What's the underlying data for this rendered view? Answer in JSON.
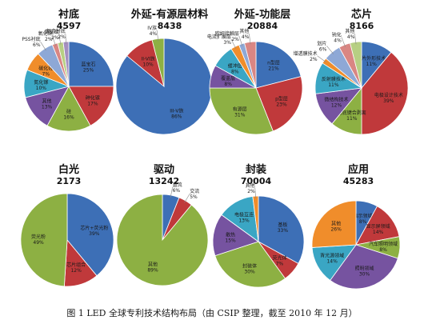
{
  "figure": {
    "caption": "图 1 LED 全球专利技术结构布局（由 CSIP 整理，截至 2010 年 12 月）"
  },
  "chart_data": [
    {
      "type": "pie",
      "title": "衬底",
      "total": "4597",
      "slices": [
        {
          "label": "蓝宝石",
          "value": 25,
          "color": "#3d6fb6"
        },
        {
          "label": "砷化镓",
          "value": 17,
          "color": "#c0393b"
        },
        {
          "label": "硅",
          "value": 16,
          "color": "#8db043"
        },
        {
          "label": "其他",
          "value": 13,
          "color": "#7653a0"
        },
        {
          "label": "氮化镓",
          "value": 10,
          "color": "#3aa6c4"
        },
        {
          "label": "碳化硅",
          "value": 7,
          "color": "#f08d2b"
        },
        {
          "label": "PSS衬底",
          "value": 6,
          "color": "#8ea8d6"
        },
        {
          "label": "氧化锌",
          "value": 2,
          "color": "#d98683"
        },
        {
          "label": "氮化铝",
          "value": 2,
          "color": "#b7cf83"
        },
        {
          "label": "复合衬底",
          "value": 2,
          "color": "#a48fc1"
        }
      ]
    },
    {
      "type": "pie",
      "title": "外延-有源层材料",
      "total": "8438",
      "slices": [
        {
          "label": "III-V族",
          "value": 86,
          "color": "#3d6fb6"
        },
        {
          "label": "II-VI族",
          "value": 10,
          "color": "#c0393b"
        },
        {
          "label": "IV族",
          "value": 4,
          "color": "#8db043"
        }
      ]
    },
    {
      "type": "pie",
      "title": "外延-功能层",
      "total": "20884",
      "slices": [
        {
          "label": "n型层",
          "value": 21,
          "color": "#3d6fb6"
        },
        {
          "label": "p型层",
          "value": 23,
          "color": "#c0393b"
        },
        {
          "label": "有源层",
          "value": 31,
          "color": "#8db043"
        },
        {
          "label": "覆盖层",
          "value": 8,
          "color": "#7653a0"
        },
        {
          "label": "缓冲层",
          "value": 8,
          "color": "#3aa6c4"
        },
        {
          "label": "电流扩展层",
          "value": 3,
          "color": "#f08d2b"
        },
        {
          "label": "欧姆接触层",
          "value": 2,
          "color": "#8ea8d6"
        },
        {
          "label": "其他",
          "value": 4,
          "color": "#d98683"
        }
      ]
    },
    {
      "type": "pie",
      "title": "芯片",
      "total": "8166",
      "slices": [
        {
          "label": "芯片外形技术",
          "value": 11,
          "color": "#3d6fb6"
        },
        {
          "label": "电极设计技术",
          "value": 39,
          "color": "#c0393b"
        },
        {
          "label": "衬底键合剥离",
          "value": 11,
          "color": "#8db043"
        },
        {
          "label": "微结构技术",
          "value": 12,
          "color": "#7653a0"
        },
        {
          "label": "反射膜技术",
          "value": 11,
          "color": "#3aa6c4"
        },
        {
          "label": "增透膜技术",
          "value": 2,
          "color": "#f08d2b"
        },
        {
          "label": "划片",
          "value": 6,
          "color": "#8ea8d6"
        },
        {
          "label": "钝化",
          "value": 4,
          "color": "#d98683"
        },
        {
          "label": "其他",
          "value": 4,
          "color": "#b7cf83"
        }
      ]
    },
    {
      "type": "pie",
      "title": "白光",
      "total": "2173",
      "slices": [
        {
          "label": "芯片+荧光粉",
          "value": 39,
          "color": "#3d6fb6"
        },
        {
          "label": "芯片组合",
          "value": 12,
          "color": "#c0393b"
        },
        {
          "label": "荧光粉",
          "value": 49,
          "color": "#8db043"
        }
      ]
    },
    {
      "type": "pie",
      "title": "驱动",
      "total": "13242",
      "slices": [
        {
          "label": "直流",
          "value": 6,
          "color": "#3d6fb6"
        },
        {
          "label": "交流",
          "value": 5,
          "color": "#c0393b"
        },
        {
          "label": "其他",
          "value": 89,
          "color": "#8db043"
        }
      ]
    },
    {
      "type": "pie",
      "title": "封装",
      "total": "70004",
      "slices": [
        {
          "label": "基板",
          "value": 33,
          "color": "#3d6fb6"
        },
        {
          "label": "荧光体",
          "value": 7,
          "color": "#c0393b"
        },
        {
          "label": "封装体",
          "value": 30,
          "color": "#8db043"
        },
        {
          "label": "散热",
          "value": 15,
          "color": "#7653a0"
        },
        {
          "label": "电极互连",
          "value": 13,
          "color": "#3aa6c4"
        },
        {
          "label": "其他",
          "value": 2,
          "color": "#f08d2b"
        }
      ]
    },
    {
      "type": "pie",
      "title": "应用",
      "total": "45283",
      "slices": [
        {
          "label": "指示领域",
          "value": 8,
          "color": "#3d6fb6"
        },
        {
          "label": "显示屏领域",
          "value": 14,
          "color": "#c0393b"
        },
        {
          "label": "汽车照明领域",
          "value": 8,
          "color": "#8db043"
        },
        {
          "label": "照明领域",
          "value": 30,
          "color": "#7653a0"
        },
        {
          "label": "背光源领域",
          "value": 14,
          "color": "#3aa6c4"
        },
        {
          "label": "其他",
          "value": 26,
          "color": "#f08d2b"
        }
      ]
    }
  ]
}
